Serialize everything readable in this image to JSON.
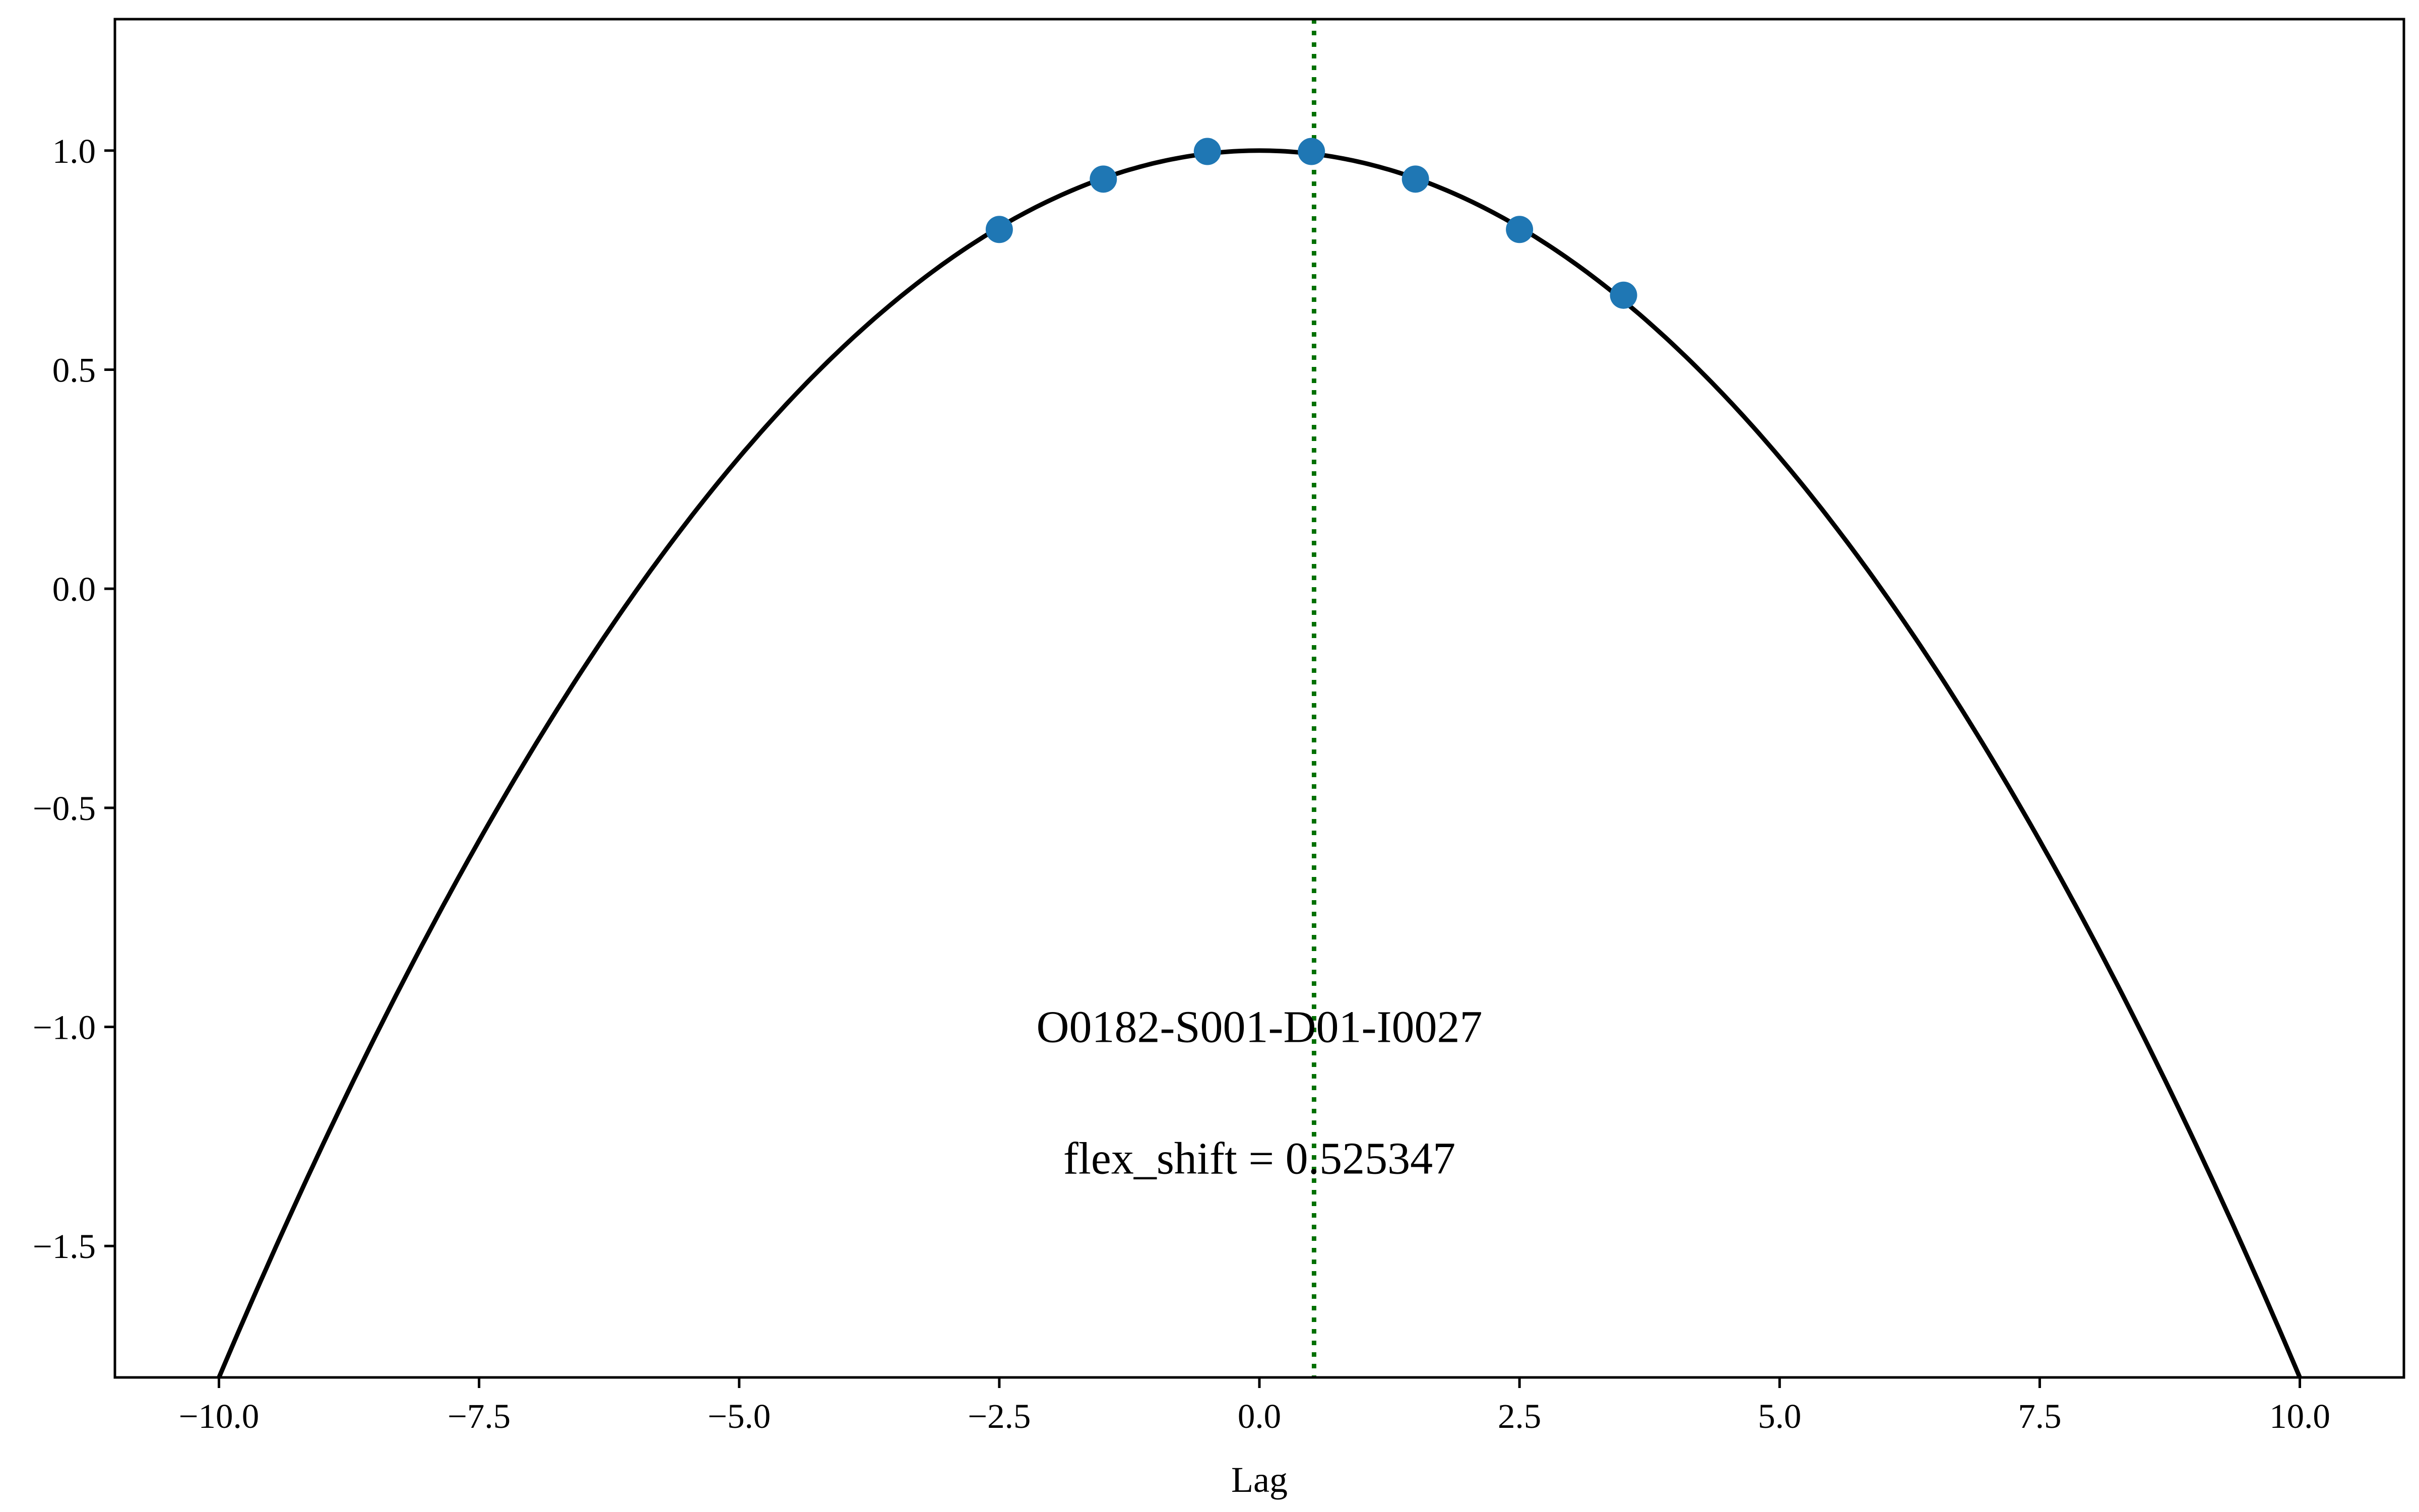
{
  "chart_data": {
    "type": "scatter",
    "xlabel": "Lag",
    "ylabel": "",
    "xlim": [
      -11.0,
      11.0
    ],
    "ylim": [
      -1.8,
      1.3
    ],
    "x_ticks": [
      -10.0,
      -7.5,
      -5.0,
      -2.5,
      0.0,
      2.5,
      5.0,
      7.5,
      10.0
    ],
    "x_tick_labels": [
      "−10.0",
      "−7.5",
      "−5.0",
      "−2.5",
      "0.0",
      "2.5",
      "5.0",
      "7.5",
      "10.0"
    ],
    "y_ticks": [
      1.0,
      0.5,
      0.0,
      -0.5,
      -1.0,
      -1.5
    ],
    "y_tick_labels": [
      "1.0",
      "0.5",
      "0.0",
      "−0.5",
      "−1.0",
      "−1.5"
    ],
    "grid": false,
    "series": [
      {
        "kind": "scatter",
        "color": "#1f77b4",
        "x": [
          -2.5,
          -1.5,
          -0.5,
          0.5,
          1.5,
          2.5,
          3.5
        ],
        "y": [
          0.82,
          0.935,
          0.998,
          0.998,
          0.935,
          0.82,
          0.67
        ]
      },
      {
        "kind": "curve",
        "color": "#000000",
        "x_range": [
          -10.0,
          10.0
        ],
        "vertex_x": 0.0,
        "vertex_y": 1.0,
        "coefficient": -0.028
      },
      {
        "kind": "vline",
        "color": "#007000",
        "linestyle": "dotted",
        "x": 0.525347
      }
    ],
    "annotations": [
      {
        "text": "O0182-S001-D01-I0027",
        "x": 0.0,
        "y": -1.0
      },
      {
        "text": "flex_shift = 0.525347",
        "x": 0.0,
        "y": -1.3
      }
    ]
  }
}
